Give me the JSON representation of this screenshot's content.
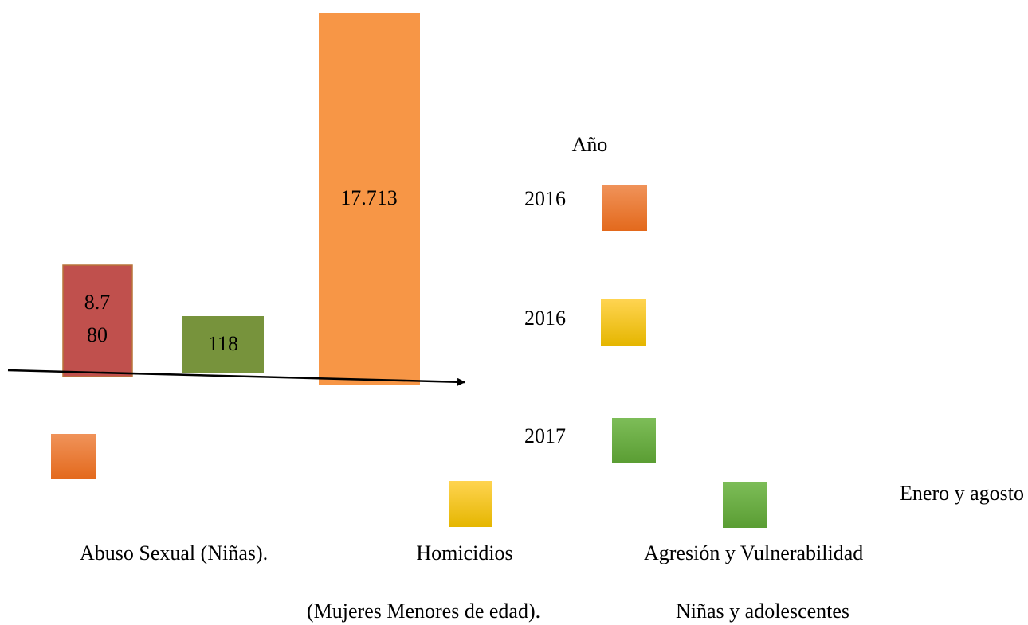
{
  "bars": [
    {
      "label_lines": [
        "8.7",
        "80"
      ]
    },
    {
      "label": "118"
    },
    {
      "label": "17.713"
    }
  ],
  "legend": {
    "title": "Año",
    "items": [
      "2016",
      "2016",
      "2017"
    ]
  },
  "note": "Enero y agosto",
  "categories": [
    {
      "lines": [
        "Abuso Sexual (Niñas)."
      ]
    },
    {
      "lines": [
        "Homicidios",
        "(Mujeres Menores de edad)."
      ]
    },
    {
      "lines": [
        "Agresión y Vulnerabilidad",
        "Niñas y adolescentes"
      ]
    }
  ]
}
